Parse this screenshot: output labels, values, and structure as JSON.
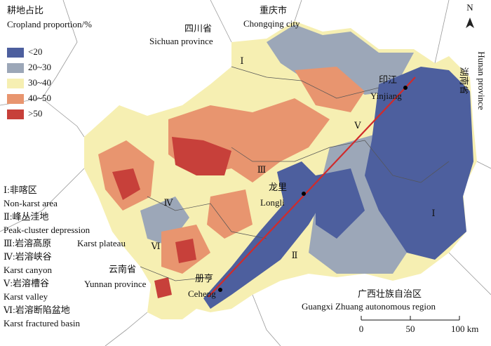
{
  "legend": {
    "title_cn": "耕地占比",
    "title_en": "Cropland proportion/%",
    "classes": [
      {
        "label": "<20",
        "color": "#4d5f9e"
      },
      {
        "label": "20~30",
        "color": "#9ca7b8"
      },
      {
        "label": "30~40",
        "color": "#f6efb2"
      },
      {
        "label": "40~50",
        "color": "#e8956f"
      },
      {
        "label": ">50",
        "color": "#c7403a"
      }
    ]
  },
  "provinces": [
    {
      "cn": "重庆市",
      "en": "Chongqing city"
    },
    {
      "cn": "四川省",
      "en": "Sichuan province"
    },
    {
      "cn": "云南省",
      "en": "Yunnan province"
    },
    {
      "cn": "广西壮族自治区",
      "en": "Guangxi Zhuang autonomous region"
    },
    {
      "cn": "湖南省",
      "en": "Hunan province"
    }
  ],
  "cities": [
    {
      "cn": "印江",
      "en": "Yinjiang"
    },
    {
      "cn": "龙里",
      "en": "Longli"
    },
    {
      "cn": "册亨",
      "en": "Ceheng"
    }
  ],
  "map_zone_labels": [
    "Ⅰ",
    "Ⅴ",
    "Ⅲ",
    "Ⅳ",
    "Ⅵ",
    "Ⅱ",
    "Ⅰ"
  ],
  "zones": [
    {
      "cn": "Ⅰ:非喀区",
      "en": "Non-karst area"
    },
    {
      "cn": "Ⅱ:峰丛洼地",
      "en": "Peak-cluster depression"
    },
    {
      "cn": "Ⅲ:岩溶高原",
      "en": "Karst plateau"
    },
    {
      "cn": "Ⅳ:岩溶峡谷",
      "en": "Karst canyon"
    },
    {
      "cn": "Ⅴ:岩溶槽谷",
      "en": "Karst valley"
    },
    {
      "cn": "Ⅵ:岩溶断陷盆地",
      "en": "Karst fractured basin"
    }
  ],
  "scale": {
    "labels": [
      "0",
      "50",
      "100 km"
    ]
  },
  "north": "N"
}
